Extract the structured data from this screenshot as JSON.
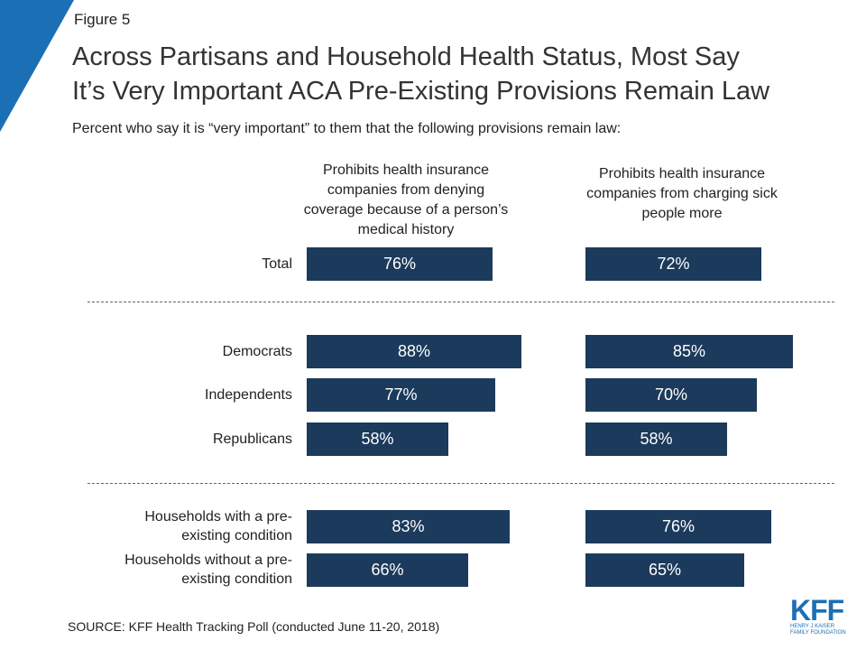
{
  "figure_label": "Figure 5",
  "title_lines": [
    "Across Partisans and Household Health Status, Most Say",
    "It’s Very Important ACA Pre-Existing Provisions Remain Law"
  ],
  "subtitle": "Percent who say it is “very important” to them that the following provisions remain law:",
  "source": "SOURCE: KFF Health Tracking Poll (conducted June 11-20, 2018)",
  "logo": {
    "text": "KFF",
    "sub_line1": "HENRY J KAISER",
    "sub_line2": "FAMILY FOUNDATION"
  },
  "colors": {
    "bar": "#1b3a5c",
    "accent": "#1b6fb5"
  },
  "chart_data": {
    "type": "bar",
    "orientation": "horizontal",
    "categories": [
      "Total",
      "Democrats",
      "Independents",
      "Republicans",
      "Households with a pre-existing condition",
      "Households without a pre-existing condition"
    ],
    "category_lines": [
      [
        "Total"
      ],
      [
        "Democrats"
      ],
      [
        "Independents"
      ],
      [
        "Republicans"
      ],
      [
        "Households with a pre-",
        "existing condition"
      ],
      [
        "Households without a pre-",
        "existing condition"
      ]
    ],
    "series": [
      {
        "name": "Prohibits health insurance companies from denying coverage because of a person’s medical history",
        "header_lines": [
          "Prohibits health insurance",
          "companies from denying",
          "coverage because of a person’s",
          "medical history"
        ],
        "values": [
          76,
          88,
          77,
          58,
          83,
          66
        ],
        "labels": [
          "76%",
          "88%",
          "77%",
          "58%",
          "83%",
          "66%"
        ]
      },
      {
        "name": "Prohibits health insurance companies from charging sick people more",
        "header_lines": [
          "Prohibits health insurance",
          "companies from charging sick",
          "people more"
        ],
        "values": [
          72,
          85,
          70,
          58,
          76,
          65
        ],
        "labels": [
          "72%",
          "85%",
          "70%",
          "58%",
          "76%",
          "65%"
        ]
      }
    ],
    "unit": "%",
    "xlim": [
      0,
      100
    ],
    "grid": false,
    "legend": "column headers above bars"
  }
}
